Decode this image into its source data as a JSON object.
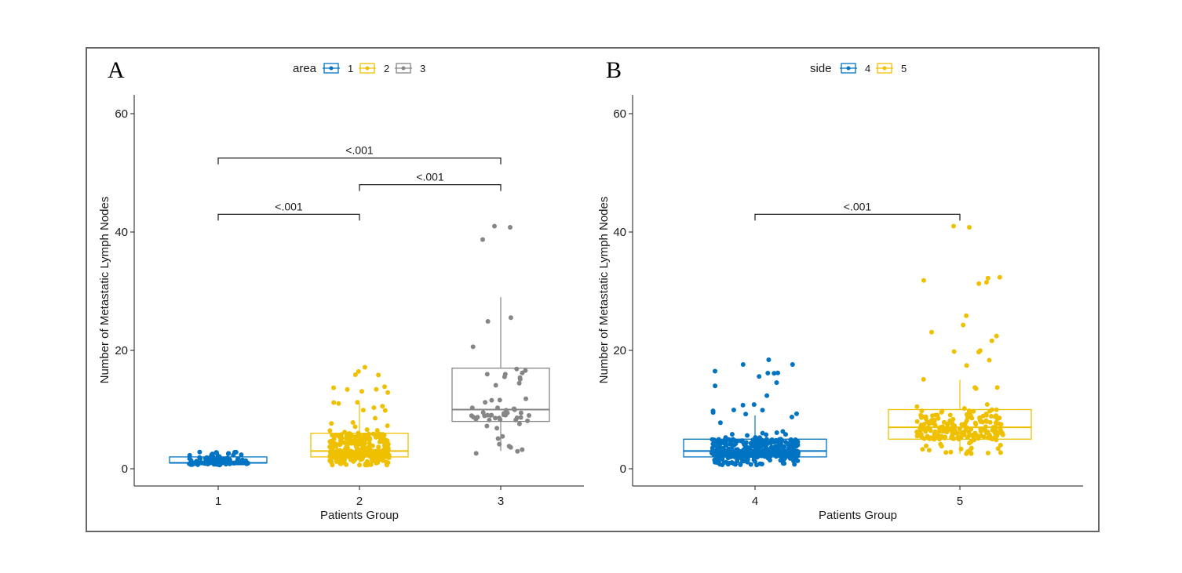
{
  "colors": {
    "blue": "#0073c2",
    "gold": "#efc000",
    "gray": "#868686",
    "frame": "#666666",
    "axis": "#1a1a1a"
  },
  "chart_data": [
    {
      "type": "boxplot",
      "panel_label": "A",
      "title": "",
      "xlabel": "Patients Group",
      "ylabel": "Number of Metastatic Lymph Nodes",
      "ylim": [
        -3,
        63
      ],
      "yticks": [
        0,
        20,
        40,
        60
      ],
      "categories": [
        "1",
        "2",
        "3"
      ],
      "legend": {
        "title": "area",
        "position": "top",
        "entries": [
          {
            "label": "1",
            "color": "#0073c2"
          },
          {
            "label": "2",
            "color": "#efc000"
          },
          {
            "label": "3",
            "color": "#868686"
          }
        ]
      },
      "boxes": [
        {
          "group": "1",
          "color": "#0073c2",
          "q1": 1,
          "median": 1,
          "q3": 2,
          "whisker_low": 1,
          "whisker_high": 3,
          "n_points": 150,
          "point_range": [
            0.6,
            3.2
          ]
        },
        {
          "group": "2",
          "color": "#efc000",
          "q1": 2,
          "median": 3,
          "q3": 6,
          "whisker_low": 1,
          "whisker_high": 11,
          "n_points": 420,
          "point_range": [
            0.6,
            18
          ]
        },
        {
          "group": "3",
          "color": "#868686",
          "q1": 8,
          "median": 10,
          "q3": 17,
          "whisker_low": 3,
          "whisker_high": 29,
          "n_points": 58,
          "point_range": [
            2.5,
            41
          ]
        }
      ],
      "comparisons": [
        {
          "from": "1",
          "to": "2",
          "y": 43,
          "label": "<.001"
        },
        {
          "from": "2",
          "to": "3",
          "y": 48,
          "label": "<.001"
        },
        {
          "from": "1",
          "to": "3",
          "y": 52.5,
          "label": "<.001"
        }
      ]
    },
    {
      "type": "boxplot",
      "panel_label": "B",
      "title": "",
      "xlabel": "Patients Group",
      "ylabel": "Number of Metastatic Lymph Nodes",
      "ylim": [
        -3,
        63
      ],
      "yticks": [
        0,
        20,
        40,
        60
      ],
      "categories": [
        "4",
        "5"
      ],
      "legend": {
        "title": "side",
        "position": "top",
        "entries": [
          {
            "label": "4",
            "color": "#0073c2"
          },
          {
            "label": "5",
            "color": "#efc000"
          }
        ]
      },
      "boxes": [
        {
          "group": "4",
          "color": "#0073c2",
          "q1": 2,
          "median": 3,
          "q3": 5,
          "whisker_low": 1,
          "whisker_high": 9,
          "n_points": 480,
          "point_range": [
            0.6,
            20
          ]
        },
        {
          "group": "5",
          "color": "#efc000",
          "q1": 5,
          "median": 7,
          "q3": 10,
          "whisker_low": 2.5,
          "whisker_high": 15,
          "n_points": 230,
          "point_range": [
            2.5,
            41
          ]
        }
      ],
      "comparisons": [
        {
          "from": "4",
          "to": "5",
          "y": 43,
          "label": "<.001"
        }
      ]
    }
  ]
}
